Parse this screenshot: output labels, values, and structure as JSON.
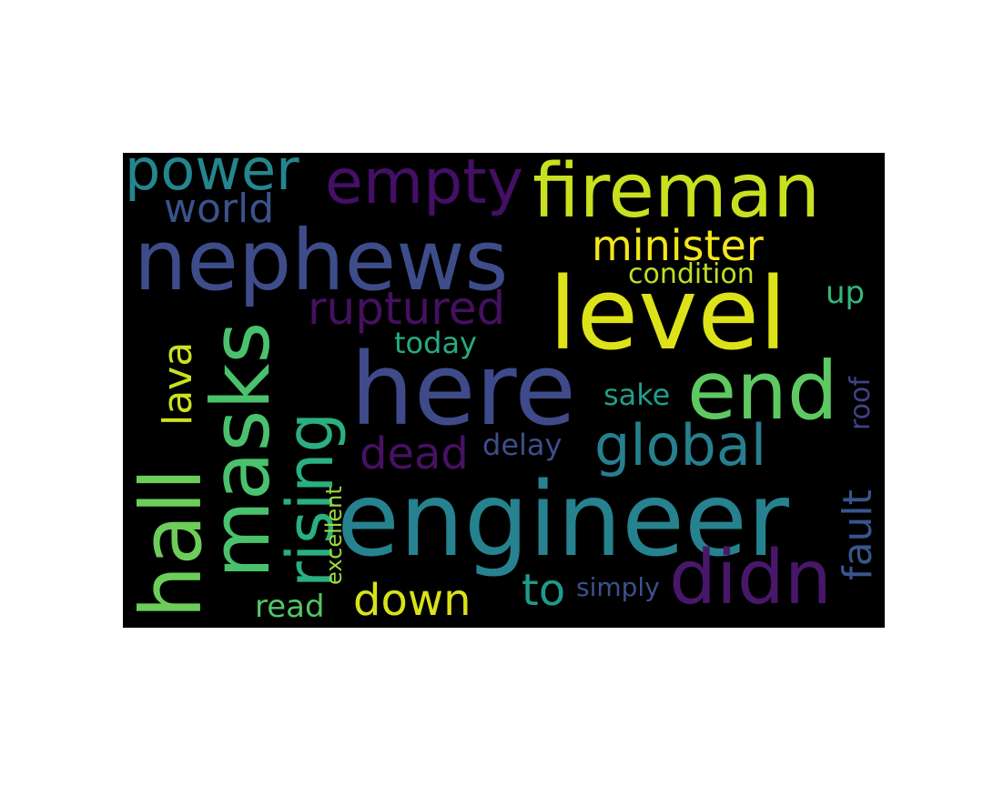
{
  "words": [
    {
      "id": "fireman",
      "text": "fireman",
      "color": "#c9e020"
    },
    {
      "id": "nephews",
      "text": "nephews",
      "color": "#3e4c8a"
    },
    {
      "id": "level",
      "text": "level",
      "color": "#dde318"
    },
    {
      "id": "engineer",
      "text": "engineer",
      "color": "#26828e"
    },
    {
      "id": "here",
      "text": "here",
      "color": "#3f4a8a"
    },
    {
      "id": "end",
      "text": "end",
      "color": "#5ec962"
    },
    {
      "id": "masks",
      "text": "masks",
      "color": "#4ac16d"
    },
    {
      "id": "hall",
      "text": "hall",
      "color": "#6ccd5a"
    },
    {
      "id": "empty",
      "text": "empty",
      "color": "#440f66"
    },
    {
      "id": "power",
      "text": "power",
      "color": "#24868e"
    },
    {
      "id": "rising",
      "text": "rising",
      "color": "#2ab07f"
    },
    {
      "id": "global",
      "text": "global",
      "color": "#277f8e"
    },
    {
      "id": "didn",
      "text": "didn",
      "color": "#481769"
    },
    {
      "id": "ruptured",
      "text": "ruptured",
      "color": "#45105f"
    },
    {
      "id": "minister",
      "text": "minister",
      "color": "#f1e51d"
    },
    {
      "id": "world",
      "text": "world",
      "color": "#3a538b"
    },
    {
      "id": "down",
      "text": "down",
      "color": "#d8e219"
    },
    {
      "id": "dead",
      "text": "dead",
      "color": "#471164"
    },
    {
      "id": "lava",
      "text": "lava",
      "color": "#cae11f"
    },
    {
      "id": "fault",
      "text": "fault",
      "color": "#39558c"
    },
    {
      "id": "to",
      "text": "to",
      "color": "#1f9a8a"
    },
    {
      "id": "condition",
      "text": "condition",
      "color": "#bddf26"
    },
    {
      "id": "today",
      "text": "today",
      "color": "#25ab82"
    },
    {
      "id": "sake",
      "text": "sake",
      "color": "#1f9e89"
    },
    {
      "id": "delay",
      "text": "delay",
      "color": "#3d4e8a"
    },
    {
      "id": "roof",
      "text": "roof",
      "color": "#414287"
    },
    {
      "id": "up",
      "text": "up",
      "color": "#35b779"
    },
    {
      "id": "read",
      "text": "read",
      "color": "#54c568"
    },
    {
      "id": "excellent",
      "text": "excellent",
      "color": "#9dd93b"
    },
    {
      "id": "simply",
      "text": "simply",
      "color": "#3b528b"
    }
  ]
}
